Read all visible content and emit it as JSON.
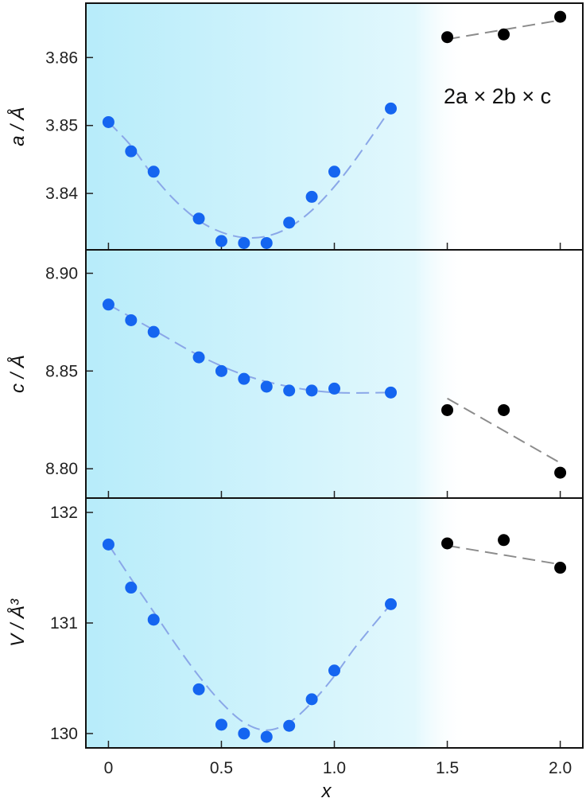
{
  "chart_data": {
    "type": "scatter",
    "x_axis": {
      "label": "x",
      "range": [
        -0.1,
        2.1
      ],
      "ticks": [
        0,
        0.5,
        1.0,
        1.5,
        2.0
      ],
      "tick_labels": [
        "0",
        "0.5",
        "1.0",
        "1.5",
        "2.0"
      ]
    },
    "shaded_region": {
      "x_from": -0.1,
      "x_to": 1.45,
      "color": "#b7ecfa"
    },
    "colors": {
      "phase1": "#1565f0",
      "phase2": "#000000",
      "fit1": "#8aa7e8",
      "fit2": "#8c8c8c"
    },
    "annotation": {
      "text": "2a × 2b × c",
      "panel": 0
    },
    "panels": [
      {
        "ylabel": "a / Å",
        "ylim": [
          3.8317,
          3.868
        ],
        "ticks": [
          3.84,
          3.85,
          3.86
        ],
        "tick_labels": [
          "3.84",
          "3.85",
          "3.86"
        ],
        "series": [
          {
            "phase": "phase1",
            "x": [
              0,
              0.1,
              0.2,
              0.4,
              0.5,
              0.6,
              0.7,
              0.8,
              0.9,
              1.0,
              1.25
            ],
            "y": [
              3.8505,
              3.8462,
              3.8432,
              3.8363,
              3.833,
              3.8327,
              3.8327,
              3.8357,
              3.8395,
              3.8432,
              3.8525
            ],
            "fit": [
              [
                0,
                3.8505
              ],
              [
                0.1,
                3.847
              ],
              [
                0.2,
                3.8425
              ],
              [
                0.3,
                3.8388
              ],
              [
                0.4,
                3.836
              ],
              [
                0.5,
                3.8343
              ],
              [
                0.6,
                3.8335
              ],
              [
                0.7,
                3.8337
              ],
              [
                0.8,
                3.835
              ],
              [
                0.9,
                3.8375
              ],
              [
                1.0,
                3.841
              ],
              [
                1.1,
                3.8453
              ],
              [
                1.25,
                3.8525
              ]
            ]
          },
          {
            "phase": "phase2",
            "x": [
              1.5,
              1.75,
              2.0
            ],
            "y": [
              3.863,
              3.8634,
              3.866
            ],
            "fit": [
              [
                1.5,
                3.8627
              ],
              [
                2.0,
                3.8655
              ]
            ]
          }
        ]
      },
      {
        "ylabel": "c / Å",
        "ylim": [
          8.785,
          8.912
        ],
        "ticks": [
          8.8,
          8.85,
          8.9
        ],
        "tick_labels": [
          "8.80",
          "8.85",
          "8.90"
        ],
        "series": [
          {
            "phase": "phase1",
            "x": [
              0,
              0.1,
              0.2,
              0.4,
              0.5,
              0.6,
              0.7,
              0.8,
              0.9,
              1.0,
              1.25
            ],
            "y": [
              8.884,
              8.876,
              8.87,
              8.857,
              8.85,
              8.846,
              8.842,
              8.84,
              8.84,
              8.841,
              8.839
            ],
            "fit": [
              [
                0,
                8.884
              ],
              [
                0.2,
                8.871
              ],
              [
                0.4,
                8.858
              ],
              [
                0.6,
                8.848
              ],
              [
                0.8,
                8.842
              ],
              [
                1.0,
                8.839
              ],
              [
                1.25,
                8.839
              ]
            ]
          },
          {
            "phase": "phase2",
            "x": [
              1.5,
              1.75,
              2.0
            ],
            "y": [
              8.83,
              8.83,
              8.798
            ],
            "fit": [
              [
                1.5,
                8.836
              ],
              [
                2.0,
                8.803
              ]
            ]
          }
        ]
      },
      {
        "ylabel": "V / Å³",
        "ylim": [
          129.87,
          132.13
        ],
        "ticks": [
          130,
          131,
          132
        ],
        "tick_labels": [
          "130",
          "131",
          "132"
        ],
        "series": [
          {
            "phase": "phase1",
            "x": [
              0,
              0.1,
              0.2,
              0.4,
              0.5,
              0.6,
              0.7,
              0.8,
              0.9,
              1.0,
              1.25
            ],
            "y": [
              131.71,
              131.32,
              131.03,
              130.4,
              130.08,
              130.0,
              129.97,
              130.07,
              130.31,
              130.57,
              131.17
            ],
            "fit": [
              [
                0,
                131.71
              ],
              [
                0.1,
                131.4
              ],
              [
                0.2,
                131.1
              ],
              [
                0.3,
                130.8
              ],
              [
                0.4,
                130.52
              ],
              [
                0.5,
                130.28
              ],
              [
                0.6,
                130.1
              ],
              [
                0.7,
                130.03
              ],
              [
                0.8,
                130.1
              ],
              [
                0.9,
                130.28
              ],
              [
                1.0,
                130.52
              ],
              [
                1.1,
                130.8
              ],
              [
                1.25,
                131.17
              ]
            ]
          },
          {
            "phase": "phase2",
            "x": [
              1.5,
              1.75,
              2.0
            ],
            "y": [
              131.72,
              131.75,
              131.5
            ],
            "fit": [
              [
                1.5,
                131.7
              ],
              [
                2.0,
                131.53
              ]
            ]
          }
        ]
      }
    ]
  }
}
